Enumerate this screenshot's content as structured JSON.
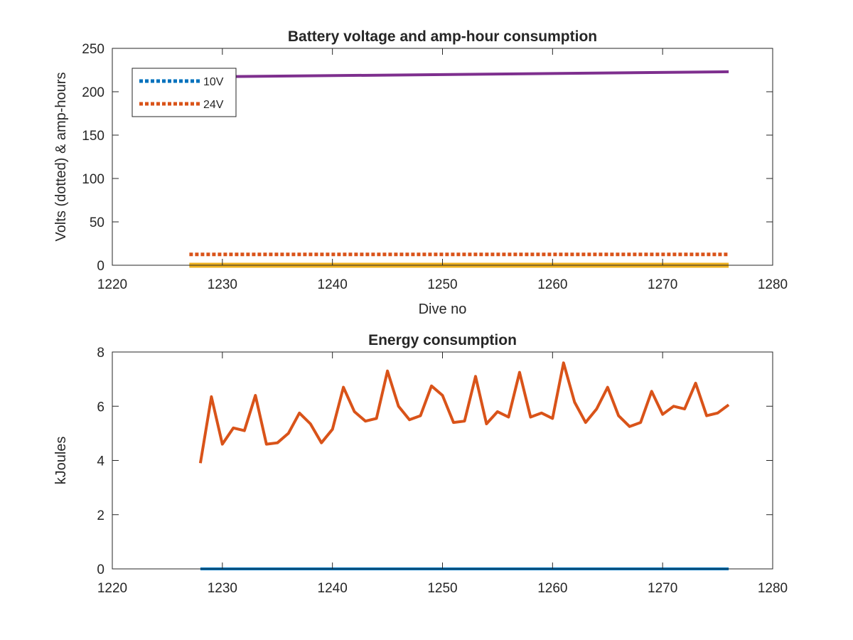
{
  "figure": {
    "background": "#ffffff"
  },
  "chart_data": [
    {
      "type": "line",
      "title": "Battery voltage and amp-hour consumption",
      "xlabel": "Dive no",
      "ylabel": "Volts (dotted) & amp-hours",
      "xlim": [
        1220,
        1280
      ],
      "ylim": [
        0,
        250
      ],
      "xticks": [
        1220,
        1230,
        1240,
        1250,
        1260,
        1270,
        1280
      ],
      "yticks": [
        0,
        50,
        100,
        150,
        200,
        250
      ],
      "grid": false,
      "legend_position": "top-left",
      "series": [
        {
          "name": "10V",
          "style": "dotted",
          "color": "#0072BD",
          "x": [
            1227,
            1276
          ],
          "y": [
            0,
            0
          ]
        },
        {
          "name": "24V",
          "style": "dotted",
          "color": "#D95319",
          "x": [
            1227,
            1276
          ],
          "y": [
            12.5,
            12.5
          ]
        },
        {
          "style": "solid",
          "color": "#EDB120",
          "x": [
            1227,
            1276
          ],
          "y": [
            0,
            0
          ]
        },
        {
          "style": "solid",
          "color": "#7E2F8E",
          "x": [
            1227,
            1276
          ],
          "y": [
            217,
            223
          ]
        }
      ]
    },
    {
      "type": "line",
      "title": "Energy consumption",
      "xlabel": "",
      "ylabel": "kJoules",
      "xlim": [
        1220,
        1280
      ],
      "ylim": [
        0,
        8
      ],
      "xticks": [
        1220,
        1230,
        1240,
        1250,
        1260,
        1270,
        1280
      ],
      "yticks": [
        0,
        2,
        4,
        6,
        8
      ],
      "grid": false,
      "series": [
        {
          "style": "solid",
          "color": "#D95319",
          "x": [
            1228,
            1229,
            1230,
            1231,
            1232,
            1233,
            1234,
            1235,
            1236,
            1237,
            1238,
            1239,
            1240,
            1241,
            1242,
            1243,
            1244,
            1245,
            1246,
            1247,
            1248,
            1249,
            1250,
            1251,
            1252,
            1253,
            1254,
            1255,
            1256,
            1257,
            1258,
            1259,
            1260,
            1261,
            1262,
            1263,
            1264,
            1265,
            1266,
            1267,
            1268,
            1269,
            1270,
            1271,
            1272,
            1273,
            1274,
            1275,
            1276
          ],
          "y": [
            3.9,
            6.35,
            4.6,
            5.2,
            5.1,
            6.4,
            4.6,
            4.65,
            5.0,
            5.75,
            5.35,
            4.65,
            5.15,
            6.7,
            5.8,
            5.45,
            5.55,
            7.3,
            6.0,
            5.5,
            5.65,
            6.75,
            6.4,
            5.4,
            5.45,
            7.1,
            5.35,
            5.8,
            5.6,
            7.25,
            5.6,
            5.75,
            5.55,
            7.6,
            6.15,
            5.4,
            5.9,
            6.7,
            5.65,
            5.25,
            5.4,
            6.55,
            5.7,
            6.0,
            5.9,
            6.85,
            5.65,
            5.75,
            6.05
          ]
        },
        {
          "style": "solid",
          "color": "#0072BD",
          "x": [
            1228,
            1276
          ],
          "y": [
            0,
            0
          ]
        }
      ]
    }
  ]
}
